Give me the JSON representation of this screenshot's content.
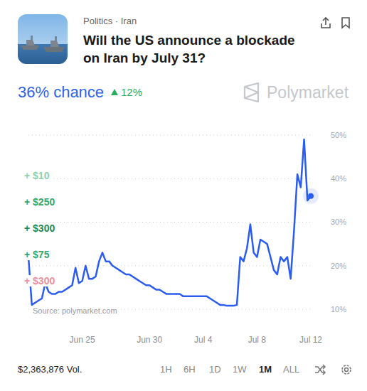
{
  "header": {
    "category": "Politics · Iran",
    "title": "Will the US announce a blockade on Iran by July 31?",
    "brand": "Polymarket"
  },
  "price": {
    "label": "36% chance",
    "color": "#2d63e6",
    "change": "12%",
    "change_color": "#27ae60"
  },
  "chart_data": {
    "type": "line",
    "color": "#2b5cf0",
    "categories": [
      null,
      null,
      null,
      null,
      null,
      null,
      null,
      null,
      null,
      null,
      null,
      null,
      null,
      null,
      null,
      null,
      "Jun 25",
      null,
      null,
      null,
      null,
      null,
      null,
      null,
      null,
      null,
      null,
      null,
      null,
      null,
      null,
      null,
      null,
      null,
      null,
      null,
      "Jun 30",
      null,
      null,
      null,
      null,
      null,
      null,
      null,
      null,
      null,
      null,
      null,
      null,
      null,
      null,
      null,
      "Jul 4",
      null,
      null,
      null,
      null,
      null,
      null,
      null,
      null,
      null,
      null,
      null,
      null,
      null,
      null,
      null,
      "Jul 8",
      null,
      null,
      null,
      null,
      null,
      null,
      null,
      null,
      null,
      null,
      null,
      null,
      null,
      null,
      null,
      "Jul 12"
    ],
    "values": [
      22,
      11,
      11.5,
      12,
      12.5,
      16,
      14,
      13.5,
      13.5,
      14,
      14,
      14.5,
      15,
      15.5,
      19.5,
      16,
      16.5,
      20,
      17,
      17,
      17.5,
      21,
      23,
      21,
      21,
      20,
      19.5,
      19,
      18.5,
      18,
      18,
      17.5,
      17,
      16.5,
      16,
      15.5,
      15.5,
      15,
      14.5,
      14.5,
      14,
      13.5,
      13.5,
      13.5,
      13.5,
      13.5,
      13,
      13,
      13,
      13,
      13,
      13,
      13,
      13,
      12.5,
      12,
      11.5,
      11,
      11,
      10.8,
      10.8,
      10.8,
      11,
      22,
      21,
      24,
      29.5,
      23,
      22,
      26,
      25.5,
      25,
      22,
      19,
      18,
      22,
      21,
      22,
      17,
      28,
      41,
      38,
      49,
      35,
      36
    ],
    "ylim": [
      10,
      50
    ],
    "yticks": [
      {
        "value": 10,
        "label": "10%"
      },
      {
        "value": 20,
        "label": "20%"
      },
      {
        "value": 30,
        "label": "30%"
      },
      {
        "value": 40,
        "label": "40%"
      },
      {
        "value": 50,
        "label": "50%"
      }
    ],
    "grid": true,
    "source": "Source: polymarket.com",
    "trades": [
      {
        "label": "+ $10",
        "color": "#8fcfac"
      },
      {
        "label": "+ $250",
        "color": "#34a86c"
      },
      {
        "label": "+ $300",
        "color": "#1f8a55"
      },
      {
        "label": "+ $75",
        "color": "#34a86c"
      },
      {
        "label": "+ $300",
        "color": "#e8909b"
      }
    ]
  },
  "footer": {
    "volume": "$2,363,876 Vol.",
    "timeframes": [
      "1H",
      "6H",
      "1D",
      "1W",
      "1M",
      "ALL"
    ],
    "selected": "1M"
  }
}
